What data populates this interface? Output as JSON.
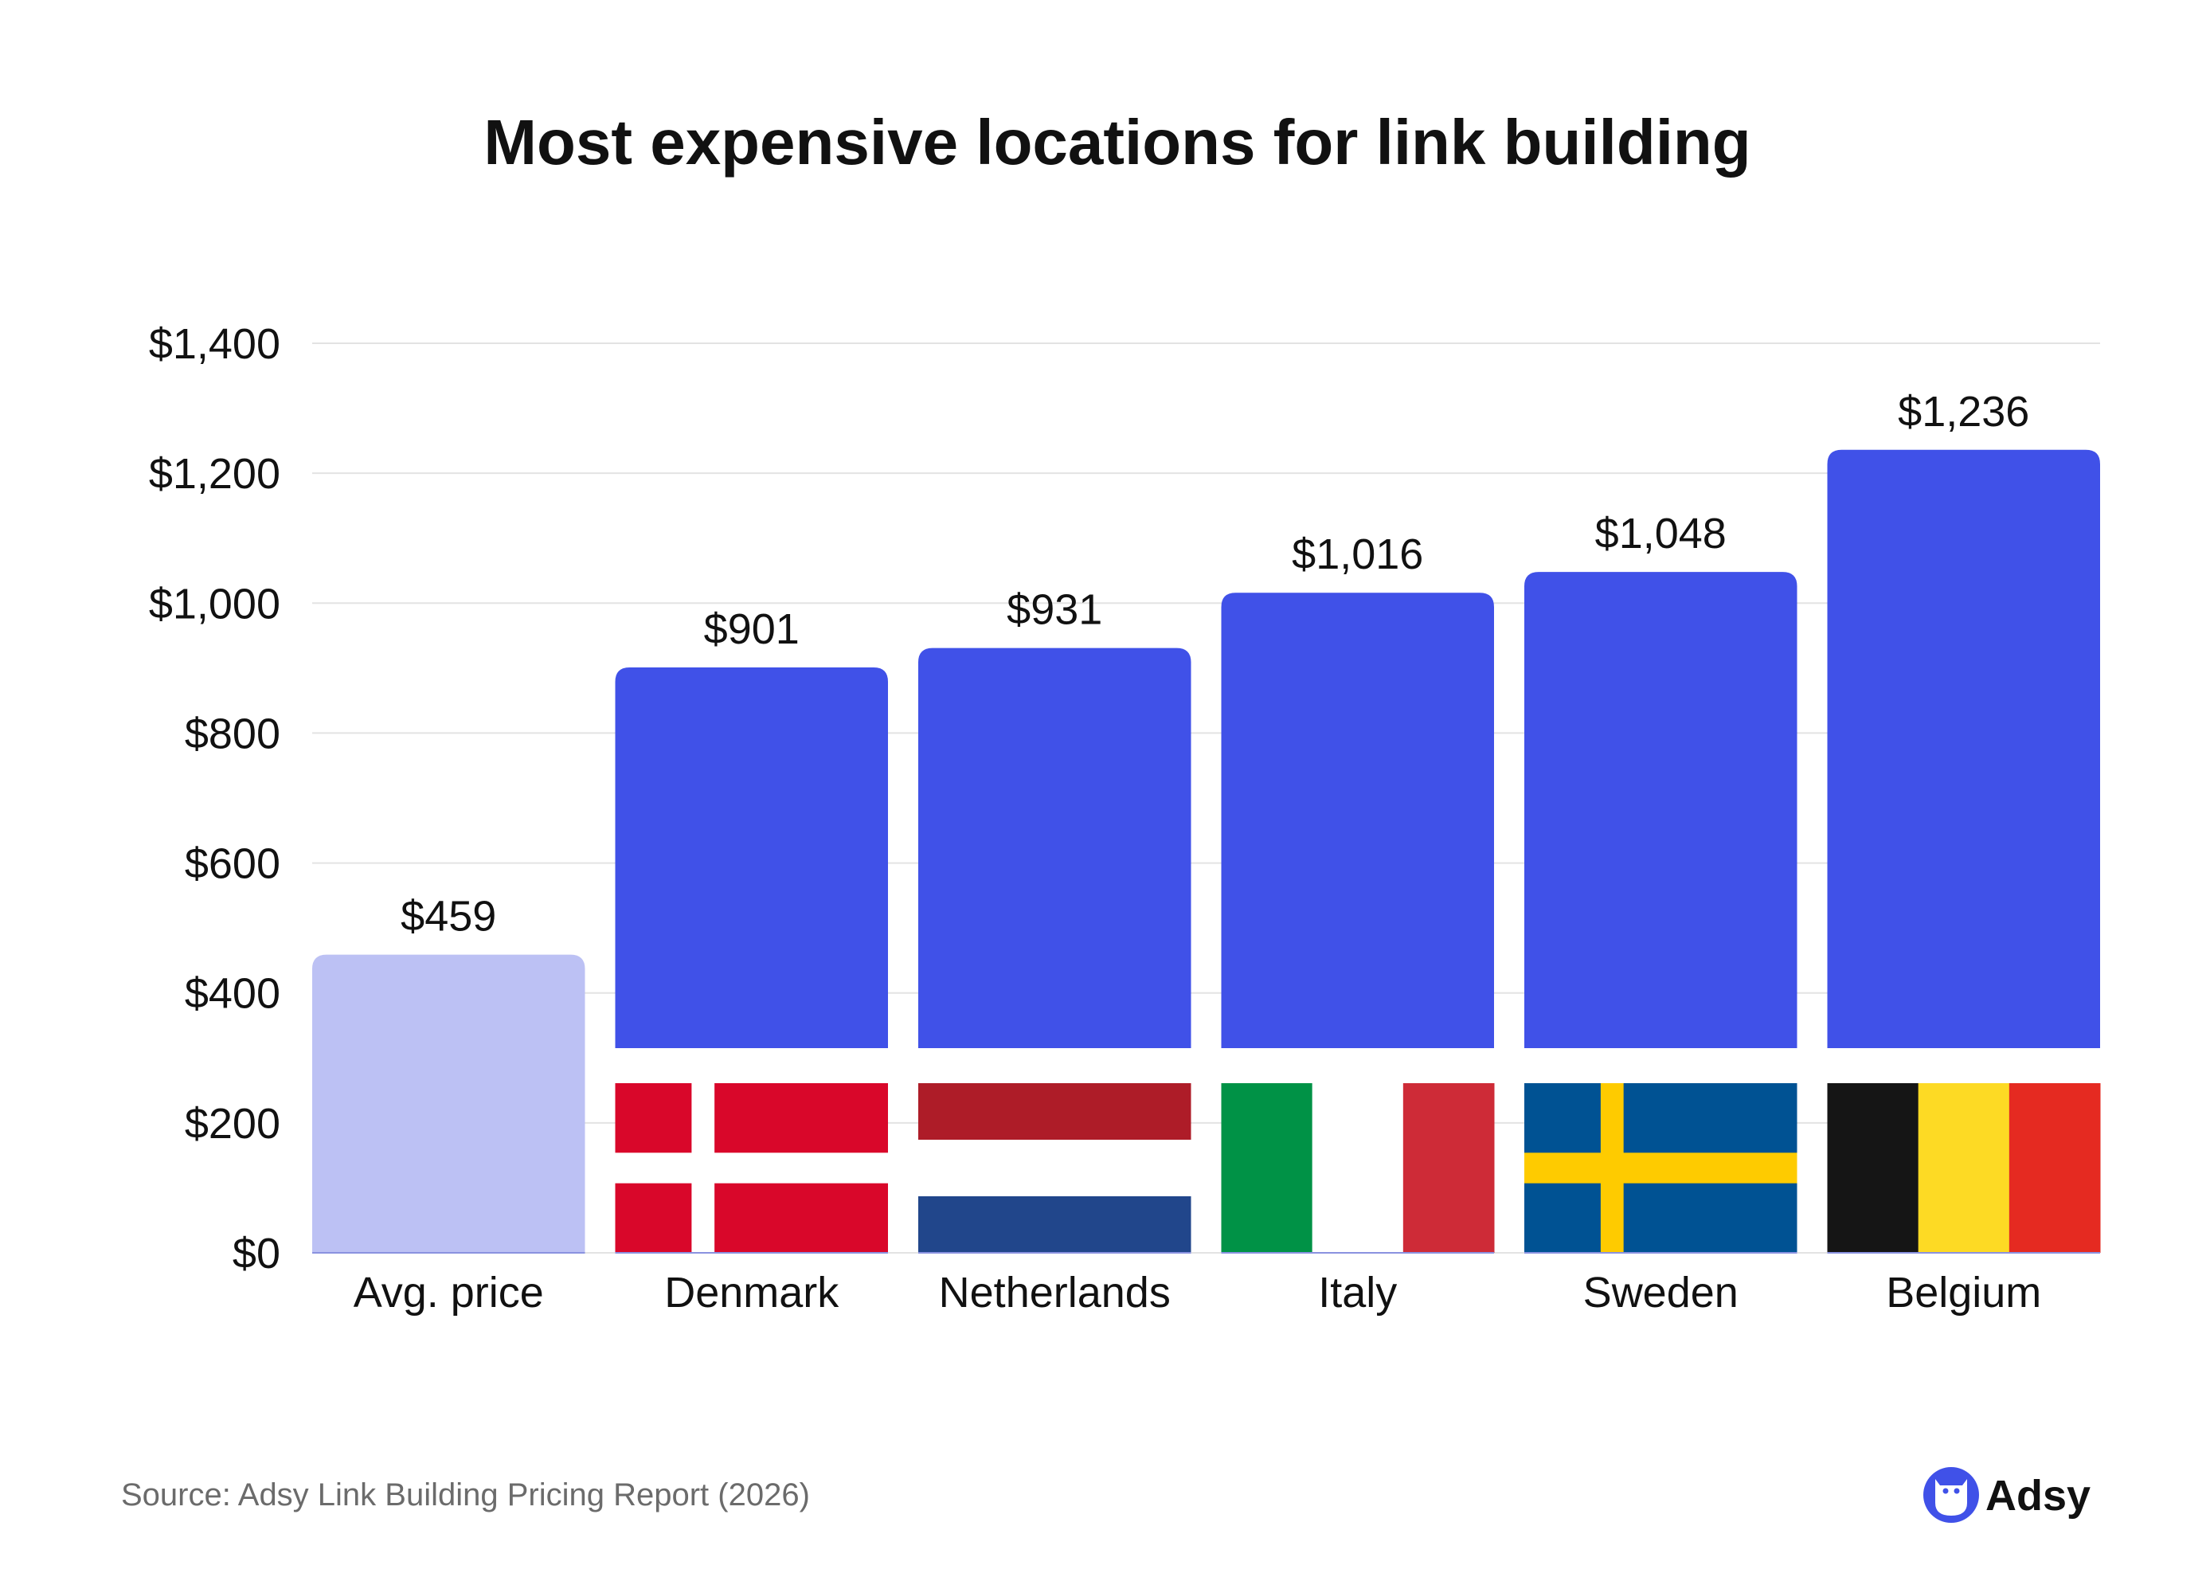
{
  "chart_data": {
    "type": "bar",
    "title": "Most expensive locations for link building",
    "categories": [
      "Avg. price",
      "Denmark",
      "Netherlands",
      "Italy",
      "Sweden",
      "Belgium"
    ],
    "values": [
      459,
      901,
      931,
      1016,
      1048,
      1236
    ],
    "value_labels": [
      "$459",
      "$901",
      "$931",
      "$1,016",
      "$1,048",
      "$1,236"
    ],
    "xlabel": "",
    "ylabel": "",
    "ylim": [
      0,
      1400
    ],
    "yticks": [
      0,
      200,
      400,
      600,
      800,
      1000,
      1200,
      1400
    ],
    "ytick_labels": [
      "$0",
      "$200",
      "$400",
      "$600",
      "$800",
      "$1,000",
      "$1,200",
      "$1,400"
    ],
    "grid": true,
    "colors": {
      "average": "#bcc1f4",
      "country": "#4051e8",
      "grid": "#e3e3e3"
    },
    "flags": [
      null,
      {
        "type": "nordic",
        "field": "#d9072a",
        "cross": "#ffffff"
      },
      {
        "type": "horizontal",
        "stripes": [
          "#ae1c28",
          "#ffffff",
          "#21468b"
        ]
      },
      {
        "type": "vertical",
        "stripes": [
          "#009246",
          "#ffffff",
          "#ce2b37"
        ]
      },
      {
        "type": "nordic",
        "field": "#005293",
        "cross": "#fecb00"
      },
      {
        "type": "vertical",
        "stripes": [
          "#151515",
          "#fdda24",
          "#e52a21"
        ]
      }
    ]
  },
  "footer": {
    "source": "Source: Adsy Link Building Pricing Report (2026)",
    "brand": "Adsy",
    "brand_icon": "owl-icon",
    "brand_color": "#4051e8"
  }
}
